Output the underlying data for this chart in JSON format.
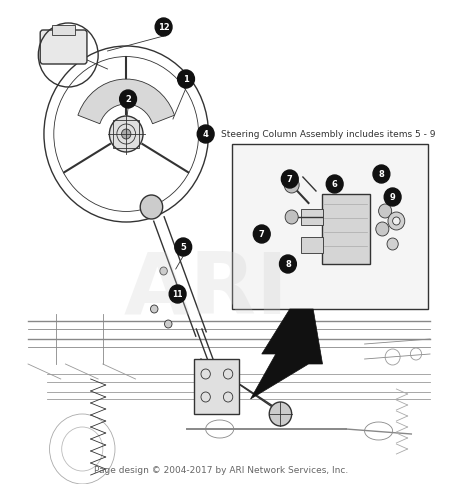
{
  "background_color": "#ffffff",
  "footer_text": "Page design © 2004-2017 by ARI Network Services, Inc.",
  "footer_fontsize": 6.5,
  "watermark_text": "ARI",
  "watermark_color": "#cccccc",
  "annotation_text": "Steering Column Assembly includes items 5 - 9",
  "line_color": "#333333",
  "dot_color": "#111111",
  "fig_w": 4.73,
  "fig_h": 4.85,
  "dpi": 100
}
